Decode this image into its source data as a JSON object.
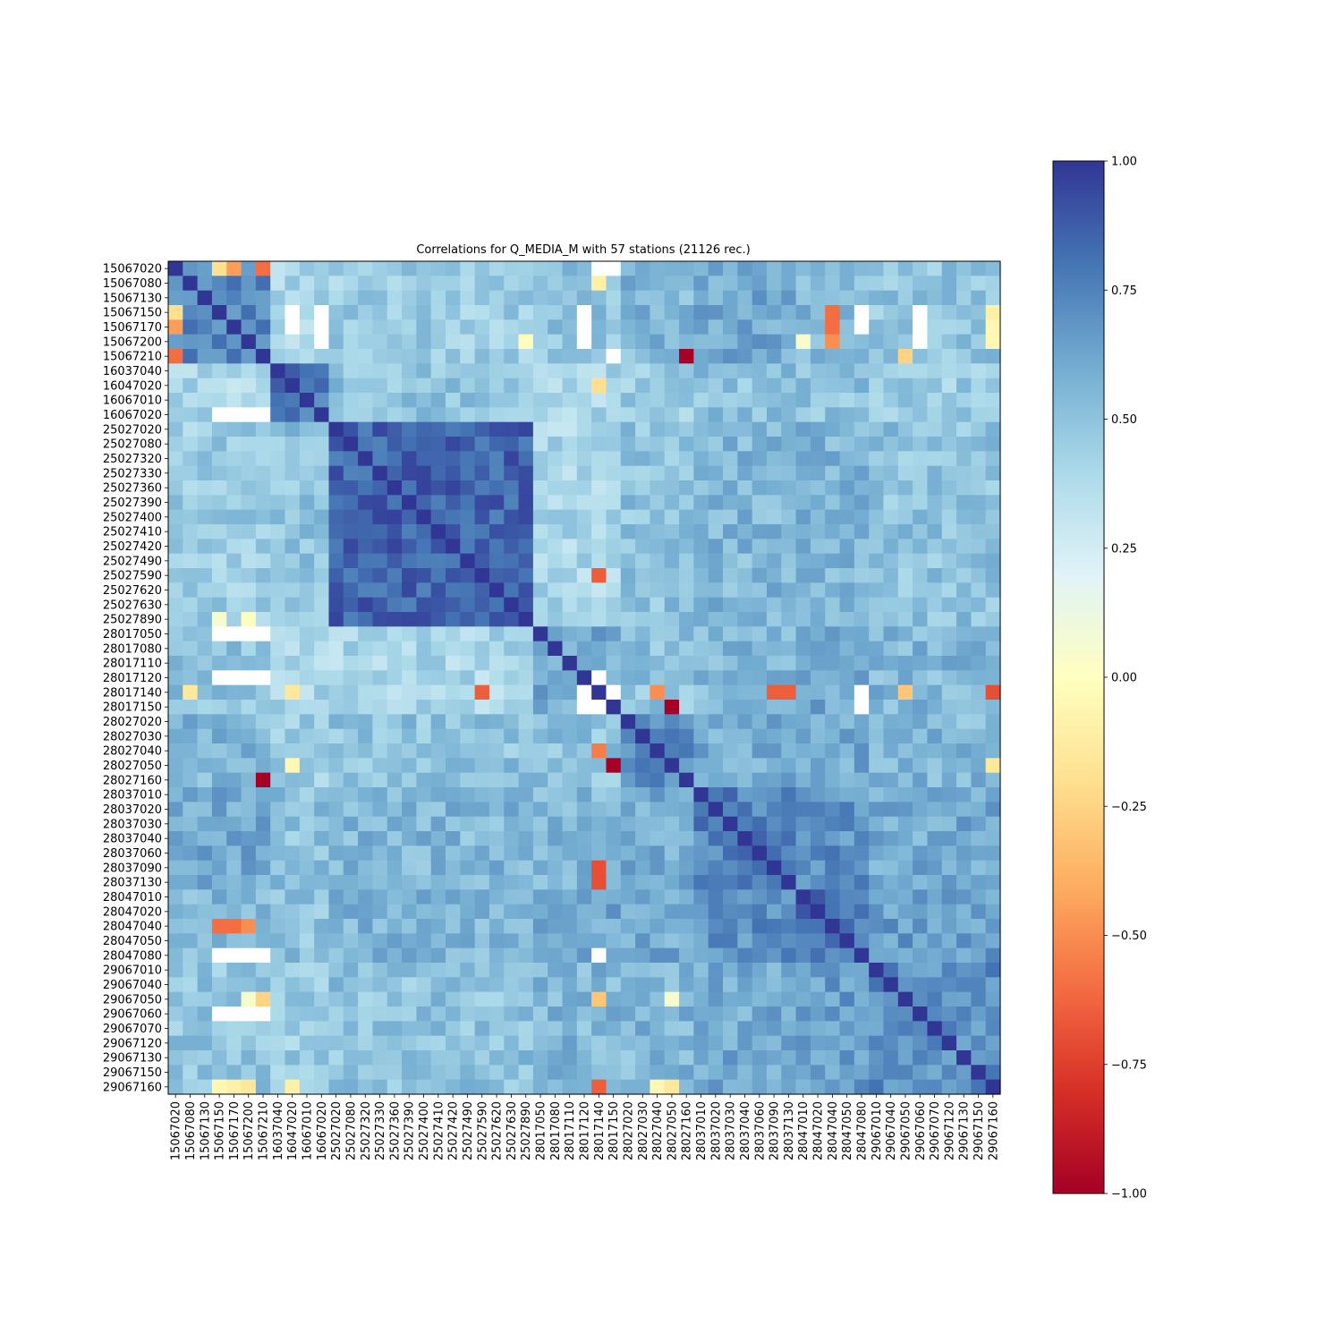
{
  "chart_data": {
    "type": "heatmap",
    "title": "Correlations for Q_MEDIA_M with 57 stations (21126 rec.)",
    "stations": [
      "15067020",
      "15067080",
      "15067130",
      "15067150",
      "15067170",
      "15067200",
      "15067210",
      "16037040",
      "16047020",
      "16067010",
      "16067020",
      "25027020",
      "25027080",
      "25027320",
      "25027330",
      "25027360",
      "25027390",
      "25027400",
      "25027410",
      "25027420",
      "25027490",
      "25027590",
      "25027620",
      "25027630",
      "25027890",
      "28017050",
      "28017080",
      "28017110",
      "28017120",
      "28017140",
      "28017150",
      "28027020",
      "28027030",
      "28027040",
      "28027050",
      "28027160",
      "28037010",
      "28037020",
      "28037030",
      "28037040",
      "28037060",
      "28037090",
      "28037130",
      "28047010",
      "28047020",
      "28047040",
      "28047050",
      "28047080",
      "29067010",
      "29067040",
      "29067050",
      "29067060",
      "29067070",
      "29067120",
      "29067130",
      "29067150",
      "29067160"
    ],
    "value_range": [
      -1.0,
      1.0
    ],
    "colormap": "RdYlBu",
    "colorbar_ticks": [
      "1.00",
      "0.75",
      "0.50",
      "0.25",
      "0.00",
      "−0.25",
      "−0.50",
      "−0.75",
      "−1.00"
    ],
    "groups": [
      [
        0,
        6
      ],
      [
        7,
        10
      ],
      [
        11,
        24
      ],
      [
        25,
        30
      ],
      [
        31,
        35
      ],
      [
        36,
        42
      ],
      [
        43,
        47
      ],
      [
        48,
        56
      ]
    ],
    "block_means": [
      [
        0.75,
        0.4,
        0.45,
        0.5,
        0.55,
        0.6,
        0.55,
        0.5
      ],
      [
        0.4,
        0.8,
        0.5,
        0.4,
        0.45,
        0.5,
        0.5,
        0.45
      ],
      [
        0.45,
        0.5,
        0.85,
        0.4,
        0.5,
        0.55,
        0.55,
        0.5
      ],
      [
        0.5,
        0.4,
        0.4,
        0.6,
        0.5,
        0.55,
        0.6,
        0.55
      ],
      [
        0.55,
        0.45,
        0.5,
        0.5,
        0.7,
        0.6,
        0.6,
        0.55
      ],
      [
        0.6,
        0.5,
        0.55,
        0.55,
        0.6,
        0.75,
        0.7,
        0.6
      ],
      [
        0.55,
        0.5,
        0.55,
        0.6,
        0.6,
        0.7,
        0.8,
        0.65
      ],
      [
        0.5,
        0.45,
        0.5,
        0.55,
        0.55,
        0.6,
        0.65,
        0.7
      ]
    ],
    "blank_cells": [
      [
        0,
        29
      ],
      [
        0,
        30
      ],
      [
        3,
        8
      ],
      [
        3,
        10
      ],
      [
        4,
        8
      ],
      [
        4,
        10
      ],
      [
        5,
        10
      ],
      [
        6,
        30
      ],
      [
        10,
        3
      ],
      [
        10,
        4
      ],
      [
        10,
        5
      ],
      [
        10,
        6
      ],
      [
        25,
        3
      ],
      [
        25,
        4
      ],
      [
        25,
        5
      ],
      [
        25,
        6
      ],
      [
        28,
        3
      ],
      [
        28,
        4
      ],
      [
        28,
        5
      ],
      [
        28,
        6
      ],
      [
        47,
        3
      ],
      [
        47,
        4
      ],
      [
        47,
        5
      ],
      [
        47,
        6
      ],
      [
        51,
        3
      ],
      [
        51,
        4
      ],
      [
        51,
        5
      ],
      [
        51,
        6
      ],
      [
        3,
        28
      ],
      [
        4,
        28
      ],
      [
        5,
        28
      ],
      [
        3,
        47
      ],
      [
        4,
        47
      ],
      [
        3,
        51
      ],
      [
        4,
        51
      ],
      [
        5,
        51
      ],
      [
        29,
        30
      ],
      [
        30,
        29
      ],
      [
        29,
        28
      ],
      [
        28,
        29
      ],
      [
        29,
        47
      ],
      [
        47,
        29
      ],
      [
        30,
        28
      ],
      [
        30,
        47
      ]
    ],
    "cell_overrides": [
      [
        0,
        3,
        -0.2
      ],
      [
        0,
        4,
        -0.45
      ],
      [
        0,
        6,
        -0.6
      ],
      [
        3,
        0,
        -0.2
      ],
      [
        4,
        0,
        -0.45
      ],
      [
        6,
        0,
        -0.6
      ],
      [
        6,
        35,
        -1.0
      ],
      [
        35,
        6,
        -1.0
      ],
      [
        6,
        50,
        -0.25
      ],
      [
        50,
        6,
        -0.25
      ],
      [
        30,
        34,
        -1.0
      ],
      [
        34,
        30,
        -1.0
      ],
      [
        29,
        1,
        -0.15
      ],
      [
        29,
        8,
        -0.15
      ],
      [
        29,
        21,
        -0.65
      ],
      [
        29,
        33,
        -0.5
      ],
      [
        29,
        41,
        -0.65
      ],
      [
        29,
        42,
        -0.65
      ],
      [
        29,
        50,
        -0.3
      ],
      [
        29,
        56,
        -0.7
      ],
      [
        1,
        29,
        -0.1
      ],
      [
        8,
        29,
        -0.2
      ],
      [
        21,
        29,
        -0.65
      ],
      [
        33,
        29,
        -0.55
      ],
      [
        41,
        29,
        -0.7
      ],
      [
        42,
        29,
        -0.7
      ],
      [
        50,
        29,
        -0.3
      ],
      [
        56,
        29,
        -0.65
      ],
      [
        45,
        3,
        -0.6
      ],
      [
        45,
        4,
        -0.6
      ],
      [
        45,
        5,
        -0.5
      ],
      [
        3,
        45,
        -0.6
      ],
      [
        4,
        45,
        -0.6
      ],
      [
        5,
        45,
        -0.5
      ],
      [
        56,
        3,
        -0.05
      ],
      [
        56,
        4,
        -0.1
      ],
      [
        56,
        5,
        -0.15
      ],
      [
        56,
        8,
        -0.1
      ],
      [
        56,
        33,
        -0.05
      ],
      [
        56,
        34,
        -0.15
      ],
      [
        34,
        8,
        -0.05
      ],
      [
        34,
        56,
        -0.15
      ],
      [
        3,
        56,
        -0.1
      ],
      [
        4,
        56,
        -0.05
      ],
      [
        5,
        56,
        -0.05
      ],
      [
        24,
        3,
        0.05
      ],
      [
        24,
        5,
        0.0
      ],
      [
        5,
        24,
        0.0
      ],
      [
        5,
        43,
        0.05
      ],
      [
        50,
        5,
        0.05
      ],
      [
        50,
        34,
        0.05
      ]
    ]
  }
}
